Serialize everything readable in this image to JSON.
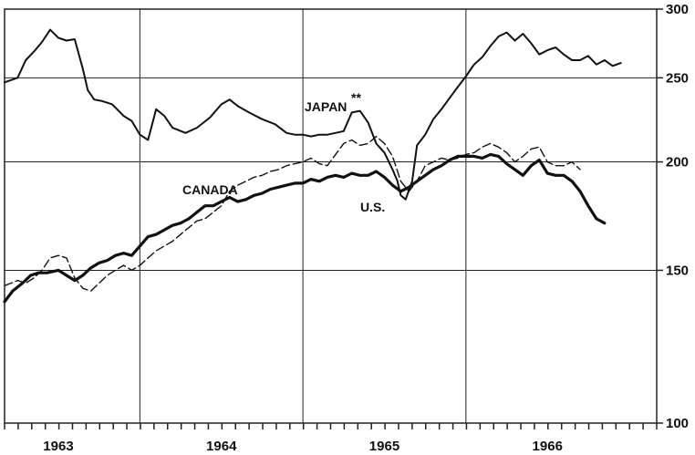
{
  "chart_data": {
    "type": "line",
    "title": "",
    "xlabel": "",
    "ylabel": "",
    "x_range": [
      1962.67,
      1966.67
    ],
    "ylim": [
      100,
      300
    ],
    "y_ticks": [
      100,
      150,
      200,
      250,
      300
    ],
    "y_scale": "log",
    "x_ticks": [
      {
        "label": "1963",
        "x": 1963.0
      },
      {
        "label": "1964",
        "x": 1964.0
      },
      {
        "label": "1965",
        "x": 1965.0
      },
      {
        "label": "1966",
        "x": 1966.0
      }
    ],
    "grid": true,
    "series": [
      {
        "name": "JAPAN",
        "label_text": "JAPAN",
        "label_suffix": "**",
        "style": "solid",
        "x": [
          1962.67,
          1962.75,
          1962.8,
          1962.85,
          1962.9,
          1962.95,
          1963.0,
          1963.05,
          1963.1,
          1963.15,
          1963.18,
          1963.22,
          1963.27,
          1963.33,
          1963.4,
          1963.45,
          1963.5,
          1963.55,
          1963.6,
          1963.65,
          1963.7,
          1963.78,
          1963.85,
          1963.93,
          1964.0,
          1964.05,
          1964.1,
          1964.17,
          1964.25,
          1964.33,
          1964.4,
          1964.45,
          1964.5,
          1964.55,
          1964.6,
          1964.65,
          1964.7,
          1964.75,
          1964.8,
          1964.85,
          1964.9,
          1964.95,
          1965.0,
          1965.05,
          1965.08,
          1965.1,
          1965.13,
          1965.17,
          1965.2,
          1965.25,
          1965.3,
          1965.35,
          1965.4,
          1965.45,
          1965.5,
          1965.55,
          1965.6,
          1965.65,
          1965.7,
          1965.75,
          1965.8,
          1965.85,
          1965.9,
          1965.95,
          1966.0,
          1966.05,
          1966.1,
          1966.15,
          1966.2,
          1966.25,
          1966.3,
          1966.35,
          1966.4,
          1966.45
        ],
        "y": [
          247,
          250,
          262,
          268,
          275,
          284,
          278,
          276,
          277,
          256,
          242,
          236,
          235,
          233,
          226,
          223,
          215,
          212,
          230,
          226,
          219,
          216,
          219,
          225,
          233,
          236,
          232,
          228,
          224,
          221,
          216,
          215,
          215,
          214,
          215,
          215,
          216,
          217,
          228,
          229,
          222,
          210,
          205,
          196,
          190,
          183,
          181,
          190,
          209,
          215,
          224,
          230,
          237,
          244,
          251,
          259,
          264,
          272,
          279,
          282,
          276,
          281,
          274,
          266,
          269,
          271,
          266,
          262,
          262,
          265,
          259,
          262,
          258,
          260
        ]
      },
      {
        "name": "CANADA",
        "label_text": "CANADA",
        "style": "dashed",
        "x": [
          1962.67,
          1962.75,
          1962.8,
          1962.85,
          1962.9,
          1962.95,
          1963.0,
          1963.05,
          1963.1,
          1963.15,
          1963.2,
          1963.25,
          1963.3,
          1963.35,
          1963.4,
          1963.45,
          1963.5,
          1963.55,
          1963.6,
          1963.65,
          1963.7,
          1963.75,
          1963.8,
          1963.85,
          1963.9,
          1963.95,
          1964.0,
          1964.05,
          1964.1,
          1964.15,
          1964.2,
          1964.25,
          1964.3,
          1964.35,
          1964.4,
          1964.45,
          1964.5,
          1964.55,
          1964.6,
          1964.65,
          1964.7,
          1964.75,
          1964.8,
          1964.85,
          1964.9,
          1964.95,
          1965.0,
          1965.05,
          1965.1,
          1965.15,
          1965.2,
          1965.25,
          1965.3,
          1965.35,
          1965.4,
          1965.45,
          1965.5,
          1965.55,
          1965.6,
          1965.65,
          1965.7,
          1965.75,
          1965.8,
          1965.85,
          1965.9,
          1965.95,
          1966.0,
          1966.05,
          1966.1,
          1966.15,
          1966.2
        ],
        "y": [
          144,
          146,
          145,
          147,
          150,
          155,
          156,
          155,
          147,
          143,
          142,
          145,
          148,
          150,
          152,
          150,
          152,
          155,
          158,
          160,
          162,
          165,
          168,
          171,
          172,
          175,
          178,
          185,
          188,
          190,
          192,
          193,
          195,
          196,
          198,
          199,
          200,
          202,
          199,
          198,
          204,
          210,
          212,
          209,
          210,
          214,
          210,
          203,
          190,
          185,
          190,
          198,
          200,
          202,
          201,
          202,
          204,
          205,
          208,
          210,
          208,
          205,
          200,
          203,
          207,
          208,
          200,
          198,
          198,
          200,
          196
        ]
      },
      {
        "name": "U.S.",
        "label_text": "U.S.",
        "style": "solid-thick",
        "x": [
          1962.67,
          1962.72,
          1962.78,
          1962.83,
          1962.88,
          1962.93,
          1963.0,
          1963.05,
          1963.1,
          1963.15,
          1963.2,
          1963.25,
          1963.3,
          1963.35,
          1963.4,
          1963.45,
          1963.5,
          1963.55,
          1963.6,
          1963.65,
          1963.7,
          1963.75,
          1963.8,
          1963.85,
          1963.9,
          1963.95,
          1964.0,
          1964.05,
          1964.1,
          1964.15,
          1964.2,
          1964.25,
          1964.3,
          1964.35,
          1964.4,
          1964.45,
          1964.5,
          1964.55,
          1964.6,
          1964.65,
          1964.7,
          1964.75,
          1964.8,
          1964.85,
          1964.9,
          1964.95,
          1965.0,
          1965.05,
          1965.1,
          1965.15,
          1965.2,
          1965.25,
          1965.3,
          1965.35,
          1965.4,
          1965.45,
          1965.5,
          1965.55,
          1965.6,
          1965.65,
          1965.7,
          1965.75,
          1965.8,
          1965.85,
          1965.9,
          1965.95,
          1966.0,
          1966.05,
          1966.1,
          1966.15,
          1966.2,
          1966.25,
          1966.3,
          1966.35
        ],
        "y": [
          138,
          142,
          145,
          148,
          149,
          149,
          150,
          148,
          146,
          148,
          151,
          153,
          154,
          156,
          157,
          156,
          160,
          164,
          165,
          167,
          169,
          170,
          172,
          175,
          178,
          178,
          180,
          182,
          180,
          181,
          183,
          184,
          186,
          187,
          188,
          189,
          189,
          191,
          190,
          192,
          193,
          192,
          194,
          193,
          193,
          195,
          192,
          188,
          185,
          187,
          190,
          193,
          196,
          198,
          201,
          203,
          203,
          203,
          202,
          204,
          203,
          199,
          196,
          193,
          198,
          201,
          194,
          193,
          193,
          190,
          185,
          178,
          172,
          170
        ]
      }
    ]
  }
}
